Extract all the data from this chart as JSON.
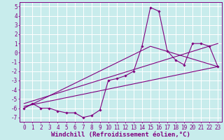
{
  "xlabel": "Windchill (Refroidissement éolien,°C)",
  "background_color": "#c8ecec",
  "grid_color": "#ffffff",
  "line_color": "#800080",
  "xlim": [
    -0.5,
    23.5
  ],
  "ylim": [
    -7.5,
    5.5
  ],
  "xticks": [
    0,
    1,
    2,
    3,
    4,
    5,
    6,
    7,
    8,
    9,
    10,
    11,
    12,
    13,
    14,
    15,
    16,
    17,
    18,
    19,
    20,
    21,
    22,
    23
  ],
  "yticks": [
    -7,
    -6,
    -5,
    -4,
    -3,
    -2,
    -1,
    0,
    1,
    2,
    3,
    4,
    5
  ],
  "data_x": [
    0,
    1,
    2,
    3,
    4,
    5,
    6,
    7,
    8,
    9,
    10,
    11,
    12,
    13,
    14,
    15,
    16,
    17,
    18,
    19,
    20,
    21,
    22,
    23
  ],
  "data_y": [
    -6.0,
    -5.5,
    -6.0,
    -6.0,
    -6.3,
    -6.5,
    -6.5,
    -7.0,
    -6.8,
    -6.2,
    -3.0,
    -2.8,
    -2.5,
    -2.0,
    0.7,
    4.9,
    4.5,
    0.2,
    -0.8,
    -1.3,
    1.0,
    1.0,
    0.7,
    -1.5
  ],
  "reg_line1_x": [
    0,
    23
  ],
  "reg_line1_y": [
    -5.8,
    -1.5
  ],
  "reg_line2_x": [
    0,
    23
  ],
  "reg_line2_y": [
    -5.5,
    1.0
  ],
  "reg_line3_x": [
    0,
    15,
    23
  ],
  "reg_line3_y": [
    -6.0,
    0.7,
    -1.5
  ],
  "tick_fontsize": 5.5,
  "xlabel_fontsize": 6.5
}
